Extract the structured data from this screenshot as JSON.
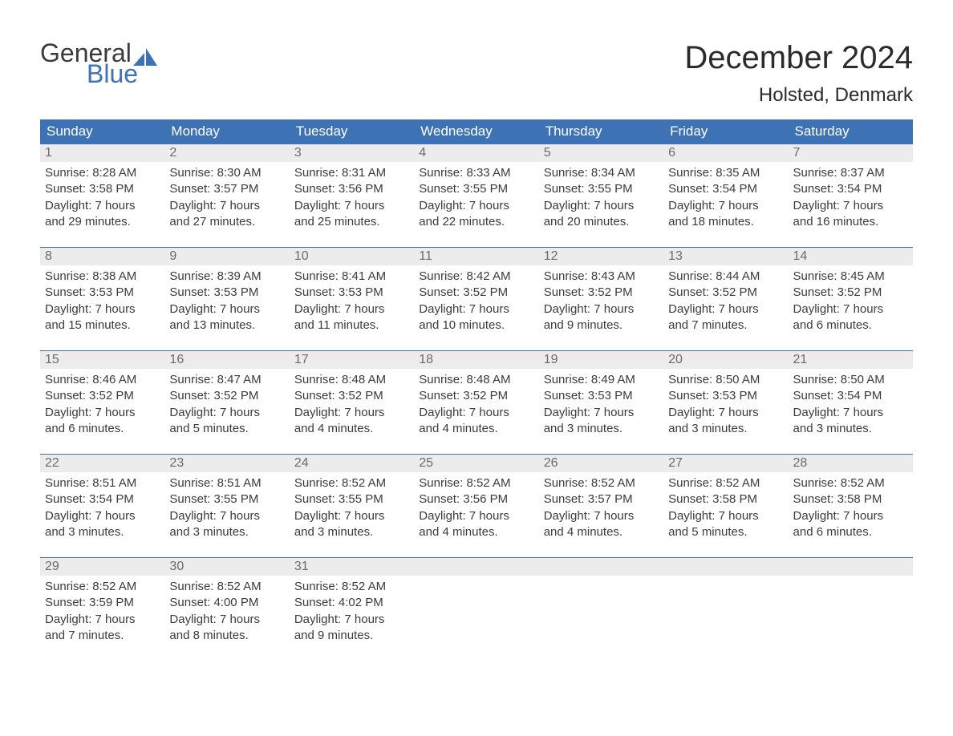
{
  "logo": {
    "word1": "General",
    "word2": "Blue"
  },
  "title": "December 2024",
  "location": "Holsted, Denmark",
  "colors": {
    "header_bg": "#3d72b4",
    "header_text": "#ffffff",
    "row_border": "#3d72b4",
    "daynum_bg": "#ececec",
    "daynum_text": "#6b6b6b",
    "body_text": "#3b3b3b",
    "logo_accent": "#3d72b4"
  },
  "weekdays": [
    "Sunday",
    "Monday",
    "Tuesday",
    "Wednesday",
    "Thursday",
    "Friday",
    "Saturday"
  ],
  "weeks": [
    [
      {
        "n": "1",
        "sunrise": "Sunrise: 8:28 AM",
        "sunset": "Sunset: 3:58 PM",
        "d1": "Daylight: 7 hours",
        "d2": "and 29 minutes."
      },
      {
        "n": "2",
        "sunrise": "Sunrise: 8:30 AM",
        "sunset": "Sunset: 3:57 PM",
        "d1": "Daylight: 7 hours",
        "d2": "and 27 minutes."
      },
      {
        "n": "3",
        "sunrise": "Sunrise: 8:31 AM",
        "sunset": "Sunset: 3:56 PM",
        "d1": "Daylight: 7 hours",
        "d2": "and 25 minutes."
      },
      {
        "n": "4",
        "sunrise": "Sunrise: 8:33 AM",
        "sunset": "Sunset: 3:55 PM",
        "d1": "Daylight: 7 hours",
        "d2": "and 22 minutes."
      },
      {
        "n": "5",
        "sunrise": "Sunrise: 8:34 AM",
        "sunset": "Sunset: 3:55 PM",
        "d1": "Daylight: 7 hours",
        "d2": "and 20 minutes."
      },
      {
        "n": "6",
        "sunrise": "Sunrise: 8:35 AM",
        "sunset": "Sunset: 3:54 PM",
        "d1": "Daylight: 7 hours",
        "d2": "and 18 minutes."
      },
      {
        "n": "7",
        "sunrise": "Sunrise: 8:37 AM",
        "sunset": "Sunset: 3:54 PM",
        "d1": "Daylight: 7 hours",
        "d2": "and 16 minutes."
      }
    ],
    [
      {
        "n": "8",
        "sunrise": "Sunrise: 8:38 AM",
        "sunset": "Sunset: 3:53 PM",
        "d1": "Daylight: 7 hours",
        "d2": "and 15 minutes."
      },
      {
        "n": "9",
        "sunrise": "Sunrise: 8:39 AM",
        "sunset": "Sunset: 3:53 PM",
        "d1": "Daylight: 7 hours",
        "d2": "and 13 minutes."
      },
      {
        "n": "10",
        "sunrise": "Sunrise: 8:41 AM",
        "sunset": "Sunset: 3:53 PM",
        "d1": "Daylight: 7 hours",
        "d2": "and 11 minutes."
      },
      {
        "n": "11",
        "sunrise": "Sunrise: 8:42 AM",
        "sunset": "Sunset: 3:52 PM",
        "d1": "Daylight: 7 hours",
        "d2": "and 10 minutes."
      },
      {
        "n": "12",
        "sunrise": "Sunrise: 8:43 AM",
        "sunset": "Sunset: 3:52 PM",
        "d1": "Daylight: 7 hours",
        "d2": "and 9 minutes."
      },
      {
        "n": "13",
        "sunrise": "Sunrise: 8:44 AM",
        "sunset": "Sunset: 3:52 PM",
        "d1": "Daylight: 7 hours",
        "d2": "and 7 minutes."
      },
      {
        "n": "14",
        "sunrise": "Sunrise: 8:45 AM",
        "sunset": "Sunset: 3:52 PM",
        "d1": "Daylight: 7 hours",
        "d2": "and 6 minutes."
      }
    ],
    [
      {
        "n": "15",
        "sunrise": "Sunrise: 8:46 AM",
        "sunset": "Sunset: 3:52 PM",
        "d1": "Daylight: 7 hours",
        "d2": "and 6 minutes."
      },
      {
        "n": "16",
        "sunrise": "Sunrise: 8:47 AM",
        "sunset": "Sunset: 3:52 PM",
        "d1": "Daylight: 7 hours",
        "d2": "and 5 minutes."
      },
      {
        "n": "17",
        "sunrise": "Sunrise: 8:48 AM",
        "sunset": "Sunset: 3:52 PM",
        "d1": "Daylight: 7 hours",
        "d2": "and 4 minutes."
      },
      {
        "n": "18",
        "sunrise": "Sunrise: 8:48 AM",
        "sunset": "Sunset: 3:52 PM",
        "d1": "Daylight: 7 hours",
        "d2": "and 4 minutes."
      },
      {
        "n": "19",
        "sunrise": "Sunrise: 8:49 AM",
        "sunset": "Sunset: 3:53 PM",
        "d1": "Daylight: 7 hours",
        "d2": "and 3 minutes."
      },
      {
        "n": "20",
        "sunrise": "Sunrise: 8:50 AM",
        "sunset": "Sunset: 3:53 PM",
        "d1": "Daylight: 7 hours",
        "d2": "and 3 minutes."
      },
      {
        "n": "21",
        "sunrise": "Sunrise: 8:50 AM",
        "sunset": "Sunset: 3:54 PM",
        "d1": "Daylight: 7 hours",
        "d2": "and 3 minutes."
      }
    ],
    [
      {
        "n": "22",
        "sunrise": "Sunrise: 8:51 AM",
        "sunset": "Sunset: 3:54 PM",
        "d1": "Daylight: 7 hours",
        "d2": "and 3 minutes."
      },
      {
        "n": "23",
        "sunrise": "Sunrise: 8:51 AM",
        "sunset": "Sunset: 3:55 PM",
        "d1": "Daylight: 7 hours",
        "d2": "and 3 minutes."
      },
      {
        "n": "24",
        "sunrise": "Sunrise: 8:52 AM",
        "sunset": "Sunset: 3:55 PM",
        "d1": "Daylight: 7 hours",
        "d2": "and 3 minutes."
      },
      {
        "n": "25",
        "sunrise": "Sunrise: 8:52 AM",
        "sunset": "Sunset: 3:56 PM",
        "d1": "Daylight: 7 hours",
        "d2": "and 4 minutes."
      },
      {
        "n": "26",
        "sunrise": "Sunrise: 8:52 AM",
        "sunset": "Sunset: 3:57 PM",
        "d1": "Daylight: 7 hours",
        "d2": "and 4 minutes."
      },
      {
        "n": "27",
        "sunrise": "Sunrise: 8:52 AM",
        "sunset": "Sunset: 3:58 PM",
        "d1": "Daylight: 7 hours",
        "d2": "and 5 minutes."
      },
      {
        "n": "28",
        "sunrise": "Sunrise: 8:52 AM",
        "sunset": "Sunset: 3:58 PM",
        "d1": "Daylight: 7 hours",
        "d2": "and 6 minutes."
      }
    ],
    [
      {
        "n": "29",
        "sunrise": "Sunrise: 8:52 AM",
        "sunset": "Sunset: 3:59 PM",
        "d1": "Daylight: 7 hours",
        "d2": "and 7 minutes."
      },
      {
        "n": "30",
        "sunrise": "Sunrise: 8:52 AM",
        "sunset": "Sunset: 4:00 PM",
        "d1": "Daylight: 7 hours",
        "d2": "and 8 minutes."
      },
      {
        "n": "31",
        "sunrise": "Sunrise: 8:52 AM",
        "sunset": "Sunset: 4:02 PM",
        "d1": "Daylight: 7 hours",
        "d2": "and 9 minutes."
      },
      {
        "n": "",
        "sunrise": "",
        "sunset": "",
        "d1": "",
        "d2": "",
        "empty": true
      },
      {
        "n": "",
        "sunrise": "",
        "sunset": "",
        "d1": "",
        "d2": "",
        "empty": true
      },
      {
        "n": "",
        "sunrise": "",
        "sunset": "",
        "d1": "",
        "d2": "",
        "empty": true
      },
      {
        "n": "",
        "sunrise": "",
        "sunset": "",
        "d1": "",
        "d2": "",
        "empty": true
      }
    ]
  ]
}
